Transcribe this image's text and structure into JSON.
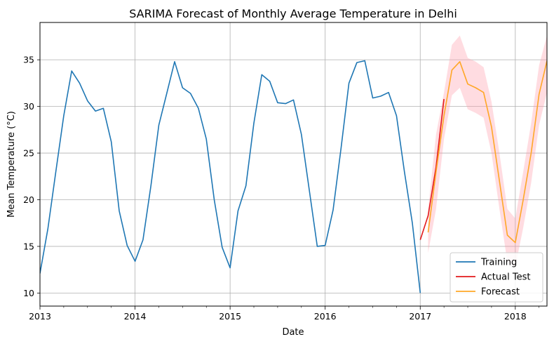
{
  "chart_data": {
    "type": "line",
    "title": "SARIMA Forecast of Monthly Average Temperature in Delhi",
    "xlabel": "Date",
    "ylabel": "Mean Temperature (°C)",
    "x_tick_labels": [
      "2013",
      "2014",
      "2015",
      "2016",
      "2017",
      "2018"
    ],
    "y_ticks": [
      10,
      15,
      20,
      25,
      30,
      35
    ],
    "xlim": [
      "2013-01-01",
      "2018-05-01"
    ],
    "ylim": [
      8.6,
      39.0
    ],
    "grid": true,
    "legend_position": "lower-right",
    "series": [
      {
        "name": "Training",
        "color": "#1f77b4",
        "x": [
          "2013-01-01",
          "2013-02-01",
          "2013-03-01",
          "2013-04-01",
          "2013-05-01",
          "2013-06-01",
          "2013-07-01",
          "2013-08-01",
          "2013-09-01",
          "2013-10-01",
          "2013-11-01",
          "2013-12-01",
          "2014-01-01",
          "2014-02-01",
          "2014-03-01",
          "2014-04-01",
          "2014-05-01",
          "2014-06-01",
          "2014-07-01",
          "2014-08-01",
          "2014-09-01",
          "2014-10-01",
          "2014-11-01",
          "2014-12-01",
          "2015-01-01",
          "2015-02-01",
          "2015-03-01",
          "2015-04-01",
          "2015-05-01",
          "2015-06-01",
          "2015-07-01",
          "2015-08-01",
          "2015-09-01",
          "2015-10-01",
          "2015-11-01",
          "2015-12-01",
          "2016-01-01",
          "2016-02-01",
          "2016-03-01",
          "2016-04-01",
          "2016-05-01",
          "2016-06-01",
          "2016-07-01",
          "2016-08-01",
          "2016-09-01",
          "2016-10-01",
          "2016-11-01",
          "2016-12-01",
          "2017-01-01"
        ],
        "values": [
          12.1,
          16.9,
          23.0,
          29.0,
          33.8,
          32.5,
          30.6,
          29.5,
          29.8,
          26.2,
          18.8,
          15.1,
          13.4,
          15.7,
          21.5,
          28.0,
          31.4,
          34.8,
          32.0,
          31.4,
          29.8,
          26.5,
          20.0,
          14.9,
          12.7,
          18.8,
          21.5,
          28.2,
          33.4,
          32.7,
          30.4,
          30.3,
          30.7,
          27.0,
          21.0,
          15.0,
          15.1,
          18.9,
          25.5,
          32.5,
          34.7,
          34.9,
          30.9,
          31.1,
          31.5,
          29.0,
          23.0,
          17.5,
          10.0
        ]
      },
      {
        "name": "Actual Test",
        "color": "#e31a1c",
        "x": [
          "2017-01-01",
          "2017-02-01",
          "2017-03-01",
          "2017-04-01"
        ],
        "values": [
          15.7,
          18.3,
          23.5,
          30.8
        ]
      },
      {
        "name": "Forecast",
        "color": "#ffa726",
        "x": [
          "2017-02-01",
          "2017-03-01",
          "2017-04-01",
          "2017-05-01",
          "2017-06-01",
          "2017-07-01",
          "2017-08-01",
          "2017-09-01",
          "2017-10-01",
          "2017-11-01",
          "2017-12-01",
          "2018-01-01",
          "2018-02-01",
          "2018-03-01",
          "2018-04-01",
          "2018-05-01"
        ],
        "values": [
          16.5,
          23.0,
          29.0,
          33.9,
          34.8,
          32.4,
          32.0,
          31.5,
          27.8,
          22.0,
          16.2,
          15.4,
          20.0,
          25.0,
          31.3,
          34.9
        ],
        "ci_lower": [
          14.3,
          19.0,
          26.5,
          31.2,
          32.0,
          29.7,
          29.3,
          28.8,
          25.0,
          19.0,
          13.3,
          12.8,
          17.0,
          21.8,
          28.0,
          31.5
        ],
        "ci_upper": [
          19.0,
          27.0,
          31.5,
          36.6,
          37.6,
          35.2,
          34.8,
          34.2,
          30.5,
          25.0,
          19.0,
          18.0,
          23.0,
          28.2,
          34.4,
          37.6
        ]
      }
    ]
  }
}
